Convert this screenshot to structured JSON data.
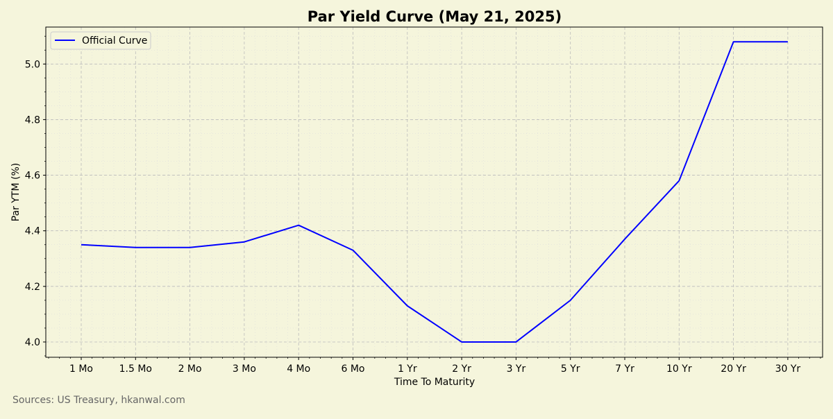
{
  "chart_data": {
    "type": "line",
    "title": "Par Yield Curve (May 21, 2025)",
    "xlabel": "Time To Maturity",
    "ylabel": "Par YTM (%)",
    "categories": [
      "1 Mo",
      "1.5 Mo",
      "2 Mo",
      "3 Mo",
      "4 Mo",
      "6 Mo",
      "1 Yr",
      "2 Yr",
      "3 Yr",
      "5 Yr",
      "7 Yr",
      "10 Yr",
      "20 Yr",
      "30 Yr"
    ],
    "series": [
      {
        "name": "Official Curve",
        "color": "#0000ff",
        "values": [
          4.35,
          4.34,
          4.34,
          4.36,
          4.42,
          4.33,
          4.13,
          4.0,
          4.0,
          4.15,
          4.37,
          4.58,
          5.08,
          5.08
        ]
      }
    ],
    "ylim": [
      3.945,
      5.133
    ],
    "yticks": [
      "4.0",
      "4.2",
      "4.4",
      "4.6",
      "4.8",
      "5.0"
    ],
    "grid": true,
    "minor_grid": true,
    "legend_position": "upper-left"
  },
  "colors": {
    "background": "#f5f5dc",
    "line": "#0000ff",
    "grid_major": "#bbbbbb",
    "grid_minor": "#dddddd"
  },
  "footer": {
    "source": "Sources: US Treasury, hkanwal.com"
  }
}
